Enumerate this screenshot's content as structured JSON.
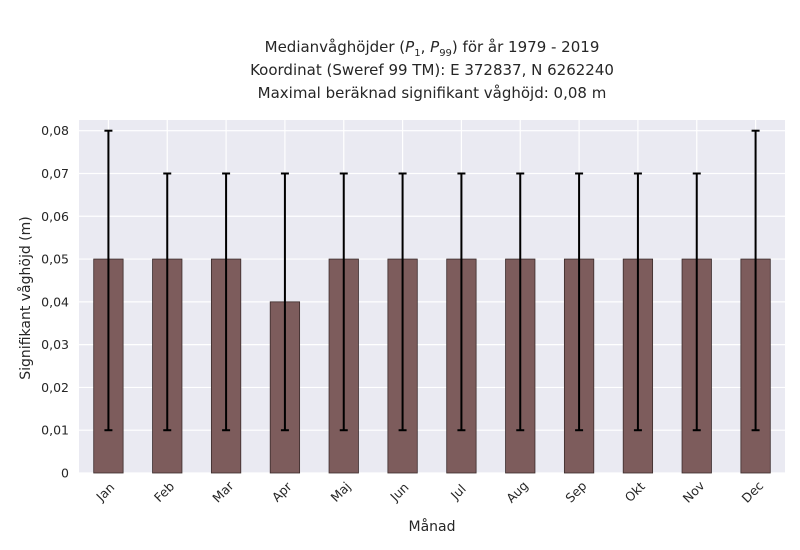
{
  "chart_data": {
    "type": "bar",
    "title_lines": [
      {
        "pre": "Medianvåghöjder (",
        "p1": "P",
        "p1_sub": "1",
        "sep": ", ",
        "p2": "P",
        "p2_sub": "99",
        "post": ") för år 1979 - 2019"
      },
      "Koordinat (Sweref 99 TM): E 372837, N 6262240",
      "Maximal beräknad signifikant våghöjd: 0,08 m"
    ],
    "xlabel": "Månad",
    "ylabel": "Signifikant våghöjd (m)",
    "categories": [
      "Jan",
      "Feb",
      "Mar",
      "Apr",
      "Maj",
      "Jun",
      "Jul",
      "Aug",
      "Sep",
      "Okt",
      "Nov",
      "Dec"
    ],
    "values": [
      0.05,
      0.05,
      0.05,
      0.04,
      0.05,
      0.05,
      0.05,
      0.05,
      0.05,
      0.05,
      0.05,
      0.05
    ],
    "error_low": [
      0.01,
      0.01,
      0.01,
      0.01,
      0.01,
      0.01,
      0.01,
      0.01,
      0.01,
      0.01,
      0.01,
      0.01
    ],
    "error_high": [
      0.08,
      0.07,
      0.07,
      0.07,
      0.07,
      0.07,
      0.07,
      0.07,
      0.07,
      0.07,
      0.07,
      0.08
    ],
    "yticks": [
      0,
      0.01,
      0.02,
      0.03,
      0.04,
      0.05,
      0.06,
      0.07,
      0.08
    ],
    "ytick_labels": [
      "0",
      "0,01",
      "0,02",
      "0,03",
      "0,04",
      "0,05",
      "0,06",
      "0,07",
      "0,08"
    ],
    "ylim": [
      0,
      0.0825
    ],
    "grid": true,
    "colors": {
      "bar": "#7d5c5c",
      "bar_edge": "#3a2a2a",
      "error_bar": "#000000",
      "plot_background": "#eaeaf2",
      "grid": "#ffffff"
    }
  }
}
